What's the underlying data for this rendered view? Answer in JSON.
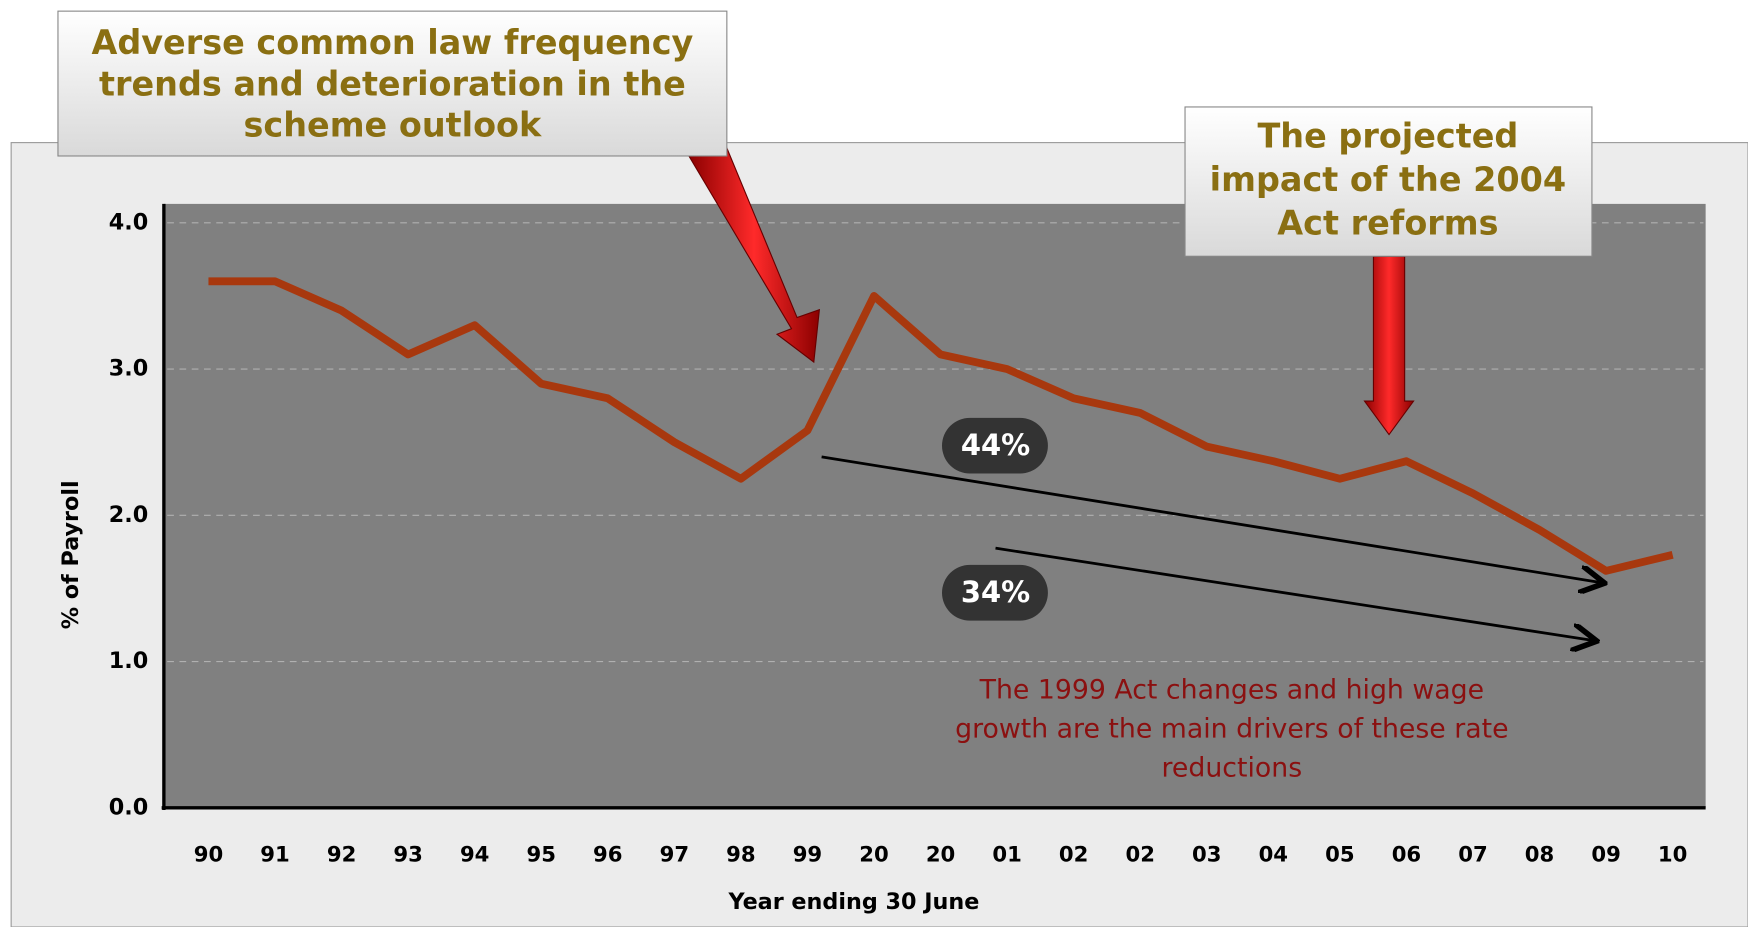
{
  "chart_data": {
    "type": "line",
    "xlabel": "Year ending 30 June",
    "ylabel": "% of Payroll",
    "categories": [
      "90",
      "91",
      "92",
      "93",
      "94",
      "95",
      "96",
      "97",
      "98",
      "99",
      "20",
      "20",
      "01",
      "02",
      "02",
      "03",
      "04",
      "05",
      "06",
      "07",
      "08",
      "09",
      "10"
    ],
    "series": [
      {
        "name": "% of Payroll",
        "color": "#a8380e",
        "values": [
          3.6,
          3.6,
          3.4,
          3.1,
          3.3,
          2.9,
          2.8,
          2.5,
          2.25,
          2.58,
          3.5,
          3.1,
          3.0,
          2.8,
          2.7,
          2.47,
          2.37,
          2.25,
          2.37,
          2.15,
          1.9,
          1.62,
          1.73
        ]
      }
    ],
    "ylim": [
      0,
      4
    ],
    "yticks": [
      {
        "value": 0,
        "label": "0.0"
      },
      {
        "value": 1,
        "label": "1.0"
      },
      {
        "value": 2,
        "label": "2.0"
      },
      {
        "value": 3,
        "label": "3.0"
      },
      {
        "value": 4,
        "label": "4.0"
      }
    ],
    "grid": true,
    "callouts": [
      {
        "lines": [
          "Adverse common law frequency",
          "trends and deterioration in the",
          "scheme outlook"
        ]
      },
      {
        "lines": [
          "The projected",
          "impact of the 2004",
          "Act reforms"
        ]
      }
    ],
    "badges": [
      "44%",
      "34%"
    ],
    "note": [
      "The 1999 Act changes and high wage",
      "growth are the main drivers of these rate",
      "reductions"
    ]
  }
}
